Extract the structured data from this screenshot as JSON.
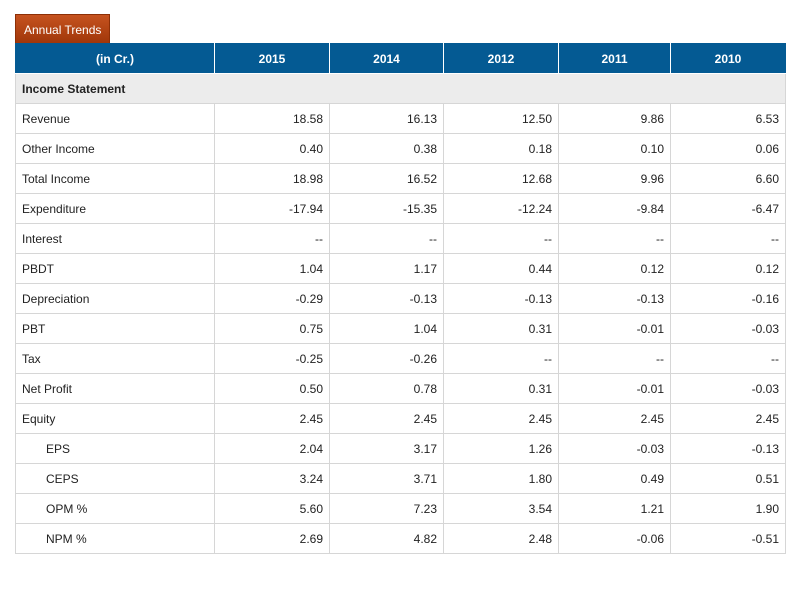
{
  "tab": {
    "label": "Annual Trends"
  },
  "table": {
    "headers": [
      "(in Cr.)",
      "2015",
      "2014",
      "2012",
      "2011",
      "2010"
    ],
    "section_title": "Income Statement",
    "rows": [
      {
        "label": "Revenue",
        "indent": false,
        "values": [
          "18.58",
          "16.13",
          "12.50",
          "9.86",
          "6.53"
        ]
      },
      {
        "label": "Other Income",
        "indent": false,
        "values": [
          "0.40",
          "0.38",
          "0.18",
          "0.10",
          "0.06"
        ]
      },
      {
        "label": "Total Income",
        "indent": false,
        "values": [
          "18.98",
          "16.52",
          "12.68",
          "9.96",
          "6.60"
        ]
      },
      {
        "label": "Expenditure",
        "indent": false,
        "values": [
          "-17.94",
          "-15.35",
          "-12.24",
          "-9.84",
          "-6.47"
        ]
      },
      {
        "label": "Interest",
        "indent": false,
        "values": [
          "--",
          "--",
          "--",
          "--",
          "--"
        ]
      },
      {
        "label": "PBDT",
        "indent": false,
        "values": [
          "1.04",
          "1.17",
          "0.44",
          "0.12",
          "0.12"
        ]
      },
      {
        "label": "Depreciation",
        "indent": false,
        "values": [
          "-0.29",
          "-0.13",
          "-0.13",
          "-0.13",
          "-0.16"
        ]
      },
      {
        "label": "PBT",
        "indent": false,
        "values": [
          "0.75",
          "1.04",
          "0.31",
          "-0.01",
          "-0.03"
        ]
      },
      {
        "label": "Tax",
        "indent": false,
        "values": [
          "-0.25",
          "-0.26",
          "--",
          "--",
          "--"
        ]
      },
      {
        "label": "Net Profit",
        "indent": false,
        "values": [
          "0.50",
          "0.78",
          "0.31",
          "-0.01",
          "-0.03"
        ]
      },
      {
        "label": "Equity",
        "indent": false,
        "values": [
          "2.45",
          "2.45",
          "2.45",
          "2.45",
          "2.45"
        ]
      },
      {
        "label": "EPS",
        "indent": true,
        "values": [
          "2.04",
          "3.17",
          "1.26",
          "-0.03",
          "-0.13"
        ]
      },
      {
        "label": "CEPS",
        "indent": true,
        "values": [
          "3.24",
          "3.71",
          "1.80",
          "0.49",
          "0.51"
        ]
      },
      {
        "label": "OPM %",
        "indent": true,
        "values": [
          "5.60",
          "7.23",
          "3.54",
          "1.21",
          "1.90"
        ]
      },
      {
        "label": "NPM %",
        "indent": true,
        "values": [
          "2.69",
          "4.82",
          "2.48",
          "-0.06",
          "-0.51"
        ]
      }
    ]
  },
  "colors": {
    "tab_bg": "#b8461a",
    "header_bg": "#045a93",
    "section_bg": "#ececec",
    "border": "#d6d6d6"
  }
}
